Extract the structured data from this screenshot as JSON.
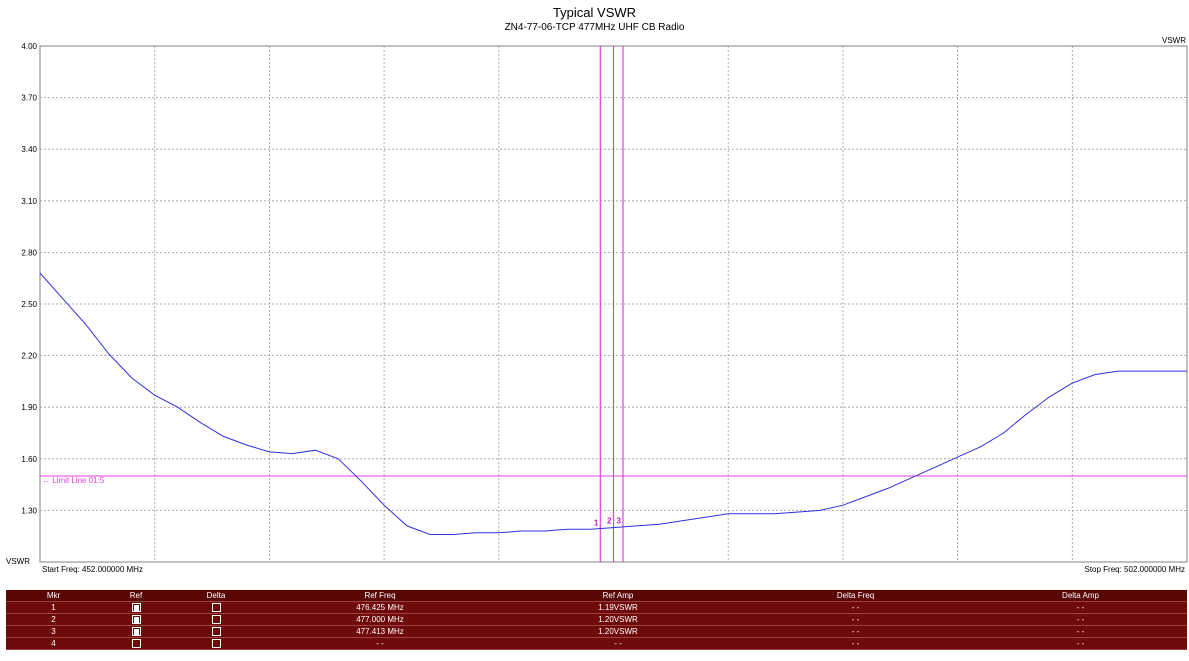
{
  "chart_data": {
    "type": "line",
    "title": "Typical VSWR",
    "subtitle": "ZN4-77-06-TCP 477MHz UHF CB Radio",
    "ylabel": "VSWR",
    "ylabel_top": "VSWR",
    "xlim": [
      452.0,
      502.0
    ],
    "ylim": [
      1.0,
      4.0
    ],
    "yticks": [
      "4.00",
      "3.70",
      "3.40",
      "3.10",
      "2.80",
      "2.50",
      "2.20",
      "1.90",
      "1.60",
      "1.30"
    ],
    "x_start_label": "Start Freq: 452.000000 MHz",
    "x_stop_label": "Stop Freq: 502.000000 MHz",
    "grid": true,
    "series": [
      {
        "color": "#3030e0",
        "x": [
          452,
          453,
          454,
          455,
          456,
          457,
          458,
          459,
          460,
          461,
          462,
          463,
          464,
          465,
          466,
          467,
          468,
          469,
          470,
          471,
          472,
          473,
          474,
          475,
          476,
          477,
          478,
          479,
          480,
          481,
          482,
          483,
          484,
          485,
          486,
          487,
          488,
          489,
          490,
          491,
          492,
          493,
          494,
          495,
          496,
          497,
          498,
          499,
          500,
          501,
          502
        ],
        "values": [
          2.68,
          2.53,
          2.38,
          2.21,
          2.07,
          1.97,
          1.9,
          1.81,
          1.73,
          1.68,
          1.64,
          1.63,
          1.65,
          1.6,
          1.47,
          1.33,
          1.21,
          1.16,
          1.16,
          1.17,
          1.17,
          1.18,
          1.18,
          1.19,
          1.19,
          1.2,
          1.21,
          1.22,
          1.24,
          1.26,
          1.28,
          1.28,
          1.28,
          1.29,
          1.3,
          1.33,
          1.38,
          1.43,
          1.49,
          1.55,
          1.61,
          1.67,
          1.75,
          1.86,
          1.96,
          2.04,
          2.09,
          2.11,
          2.11,
          2.11,
          2.11
        ]
      }
    ],
    "limit_line": {
      "label": "Limit Line 01:5",
      "value": 1.5,
      "color": "#e040e0"
    },
    "markers": [
      {
        "label": "1",
        "freq": 476.425,
        "amp": 1.19
      },
      {
        "label": "2",
        "freq": 477.0,
        "amp": 1.2
      },
      {
        "label": "3",
        "freq": 477.413,
        "amp": 1.2
      }
    ]
  },
  "table": {
    "headers": [
      "Mkr",
      "Ref",
      "Delta",
      "Ref Freq",
      "Ref Amp",
      "Delta Freq",
      "Delta Amp"
    ],
    "rows": [
      {
        "mkr": "1",
        "ref": true,
        "delta": false,
        "ref_freq": "476.425 MHz",
        "ref_amp": "1.19VSWR",
        "delta_freq": "- -",
        "delta_amp": "- -"
      },
      {
        "mkr": "2",
        "ref": true,
        "delta": false,
        "ref_freq": "477.000 MHz",
        "ref_amp": "1.20VSWR",
        "delta_freq": "- -",
        "delta_amp": "- -"
      },
      {
        "mkr": "3",
        "ref": true,
        "delta": false,
        "ref_freq": "477.413 MHz",
        "ref_amp": "1.20VSWR",
        "delta_freq": "- -",
        "delta_amp": "- -"
      },
      {
        "mkr": "4",
        "ref": false,
        "delta": false,
        "ref_freq": "- -",
        "ref_amp": "- -",
        "delta_freq": "- -",
        "delta_amp": "- -"
      }
    ]
  }
}
